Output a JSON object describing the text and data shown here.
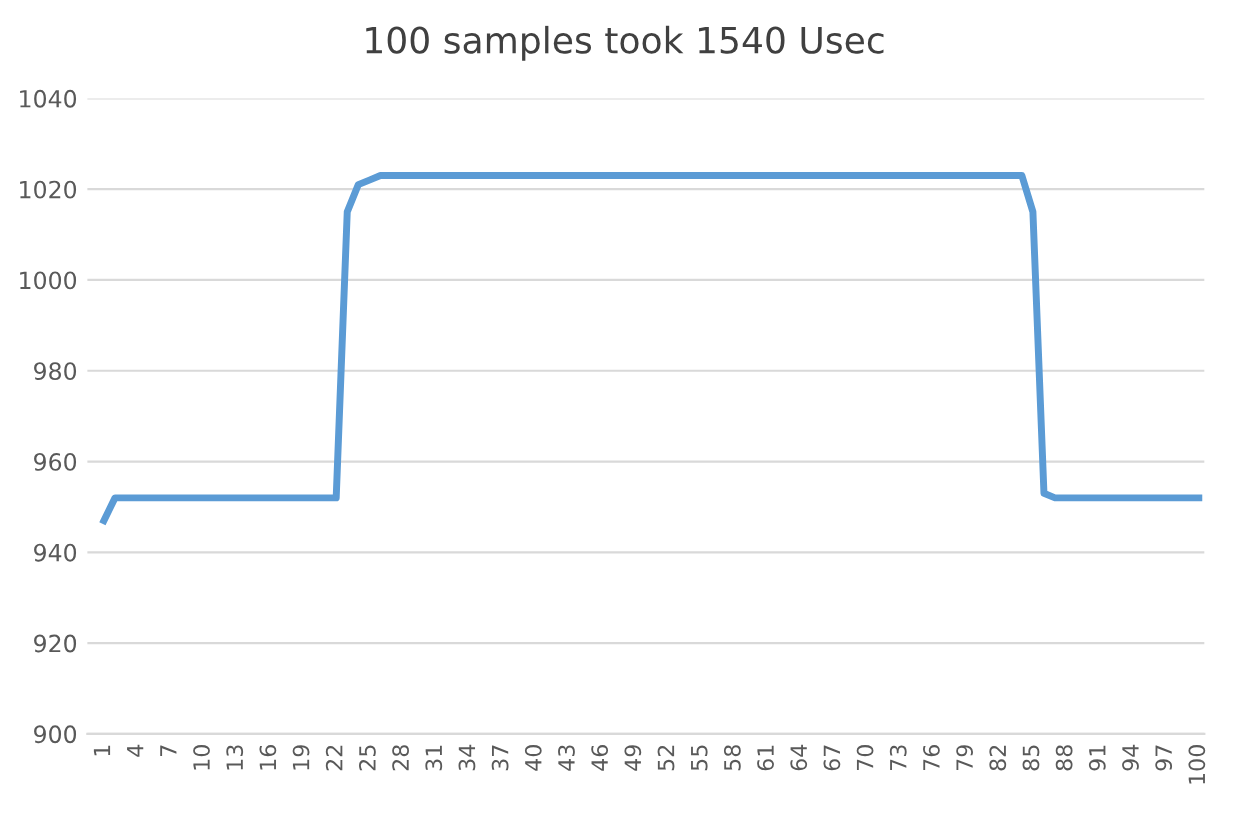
{
  "chart_data": {
    "type": "line",
    "title": "100 samples took 1540 Usec",
    "categories": [
      "1",
      null,
      null,
      "4",
      null,
      null,
      "7",
      null,
      null,
      "10",
      null,
      null,
      "13",
      null,
      null,
      "16",
      null,
      null,
      "19",
      null,
      null,
      "22",
      null,
      null,
      "25",
      null,
      null,
      "28",
      null,
      null,
      "31",
      null,
      null,
      "34",
      null,
      null,
      "37",
      null,
      null,
      "40",
      null,
      null,
      "43",
      null,
      null,
      "46",
      null,
      null,
      "49",
      null,
      null,
      "52",
      null,
      null,
      "55",
      null,
      null,
      "58",
      null,
      null,
      "61",
      null,
      null,
      "64",
      null,
      null,
      "67",
      null,
      null,
      "70",
      null,
      null,
      "73",
      null,
      null,
      "76",
      null,
      null,
      "79",
      null,
      null,
      "82",
      null,
      null,
      "85",
      null,
      null,
      "88",
      null,
      null,
      "91",
      null,
      null,
      "94",
      null,
      null,
      "97",
      null,
      null,
      "100"
    ],
    "series": [
      {
        "color": "#5b9bd5",
        "values": [
          947,
          952,
          952,
          952,
          952,
          952,
          952,
          952,
          952,
          952,
          952,
          952,
          952,
          952,
          952,
          952,
          952,
          952,
          952,
          952,
          952,
          952,
          1015,
          1021,
          1022,
          1023,
          1023,
          1023,
          1023,
          1023,
          1023,
          1023,
          1023,
          1023,
          1023,
          1023,
          1023,
          1023,
          1023,
          1023,
          1023,
          1023,
          1023,
          1023,
          1023,
          1023,
          1023,
          1023,
          1023,
          1023,
          1023,
          1023,
          1023,
          1023,
          1023,
          1023,
          1023,
          1023,
          1023,
          1023,
          1023,
          1023,
          1023,
          1023,
          1023,
          1023,
          1023,
          1023,
          1023,
          1023,
          1023,
          1023,
          1023,
          1023,
          1023,
          1023,
          1023,
          1023,
          1023,
          1023,
          1023,
          1023,
          1023,
          1023,
          1015,
          953,
          952,
          952,
          952,
          952,
          952,
          952,
          952,
          952,
          952,
          952,
          952,
          952,
          952,
          952
        ]
      }
    ],
    "ylim": [
      900,
      1040
    ],
    "yticks": [
      900,
      920,
      940,
      960,
      980,
      1000,
      1020,
      1040
    ],
    "grid": "y",
    "marker": "none",
    "line_style": "solid"
  }
}
